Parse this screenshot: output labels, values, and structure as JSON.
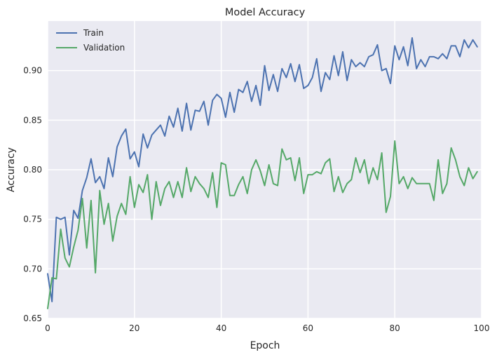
{
  "chart_data": {
    "type": "line",
    "title": "Model Accuracy",
    "xlabel": "Epoch",
    "ylabel": "Accuracy",
    "xlim": [
      0,
      100
    ],
    "ylim": [
      0.65,
      0.95
    ],
    "xticks": [
      0,
      20,
      40,
      60,
      80,
      100
    ],
    "yticks": [
      0.65,
      0.7,
      0.75,
      0.8,
      0.85,
      0.9
    ],
    "ytick_labels": [
      "0.65",
      "0.70",
      "0.75",
      "0.80",
      "0.85",
      "0.90"
    ],
    "grid": true,
    "legend_position": "upper-left",
    "background": "#eaeaf2",
    "x": [
      0,
      1,
      2,
      3,
      4,
      5,
      6,
      7,
      8,
      9,
      10,
      11,
      12,
      13,
      14,
      15,
      16,
      17,
      18,
      19,
      20,
      21,
      22,
      23,
      24,
      25,
      26,
      27,
      28,
      29,
      30,
      31,
      32,
      33,
      34,
      35,
      36,
      37,
      38,
      39,
      40,
      41,
      42,
      43,
      44,
      45,
      46,
      47,
      48,
      49,
      50,
      51,
      52,
      53,
      54,
      55,
      56,
      57,
      58,
      59,
      60,
      61,
      62,
      63,
      64,
      65,
      66,
      67,
      68,
      69,
      70,
      71,
      72,
      73,
      74,
      75,
      76,
      77,
      78,
      79,
      80,
      81,
      82,
      83,
      84,
      85,
      86,
      87,
      88,
      89,
      90,
      91,
      92,
      93,
      94,
      95,
      96,
      97,
      98,
      99
    ],
    "series": [
      {
        "name": "Train",
        "color": "#4c72b0",
        "values": [
          0.695,
          0.667,
          0.752,
          0.75,
          0.752,
          0.714,
          0.759,
          0.751,
          0.779,
          0.792,
          0.811,
          0.787,
          0.793,
          0.781,
          0.812,
          0.793,
          0.823,
          0.834,
          0.841,
          0.811,
          0.818,
          0.803,
          0.836,
          0.822,
          0.835,
          0.84,
          0.845,
          0.834,
          0.854,
          0.843,
          0.862,
          0.839,
          0.867,
          0.84,
          0.86,
          0.859,
          0.869,
          0.845,
          0.87,
          0.876,
          0.872,
          0.853,
          0.878,
          0.858,
          0.881,
          0.878,
          0.889,
          0.869,
          0.885,
          0.865,
          0.905,
          0.88,
          0.896,
          0.879,
          0.902,
          0.893,
          0.907,
          0.889,
          0.906,
          0.882,
          0.885,
          0.893,
          0.912,
          0.879,
          0.898,
          0.891,
          0.915,
          0.895,
          0.919,
          0.89,
          0.911,
          0.904,
          0.908,
          0.904,
          0.914,
          0.916,
          0.926,
          0.9,
          0.902,
          0.887,
          0.925,
          0.911,
          0.924,
          0.905,
          0.933,
          0.902,
          0.911,
          0.904,
          0.914,
          0.914,
          0.912,
          0.917,
          0.912,
          0.925,
          0.925,
          0.914,
          0.931,
          0.923,
          0.931,
          0.924
        ]
      },
      {
        "name": "Validation",
        "color": "#55a868",
        "values": [
          0.66,
          0.691,
          0.69,
          0.74,
          0.711,
          0.702,
          0.722,
          0.739,
          0.771,
          0.721,
          0.769,
          0.696,
          0.779,
          0.745,
          0.766,
          0.728,
          0.753,
          0.766,
          0.755,
          0.793,
          0.762,
          0.785,
          0.777,
          0.795,
          0.75,
          0.788,
          0.764,
          0.781,
          0.788,
          0.772,
          0.788,
          0.772,
          0.802,
          0.778,
          0.793,
          0.786,
          0.781,
          0.772,
          0.797,
          0.762,
          0.807,
          0.805,
          0.774,
          0.774,
          0.785,
          0.793,
          0.776,
          0.8,
          0.81,
          0.799,
          0.784,
          0.805,
          0.786,
          0.784,
          0.821,
          0.81,
          0.812,
          0.789,
          0.812,
          0.776,
          0.795,
          0.795,
          0.798,
          0.796,
          0.807,
          0.811,
          0.778,
          0.793,
          0.777,
          0.786,
          0.79,
          0.812,
          0.797,
          0.81,
          0.786,
          0.802,
          0.79,
          0.817,
          0.757,
          0.773,
          0.829,
          0.786,
          0.793,
          0.781,
          0.792,
          0.786,
          0.786,
          0.786,
          0.786,
          0.769,
          0.81,
          0.776,
          0.786,
          0.822,
          0.81,
          0.793,
          0.784,
          0.802,
          0.791,
          0.798
        ]
      }
    ]
  }
}
